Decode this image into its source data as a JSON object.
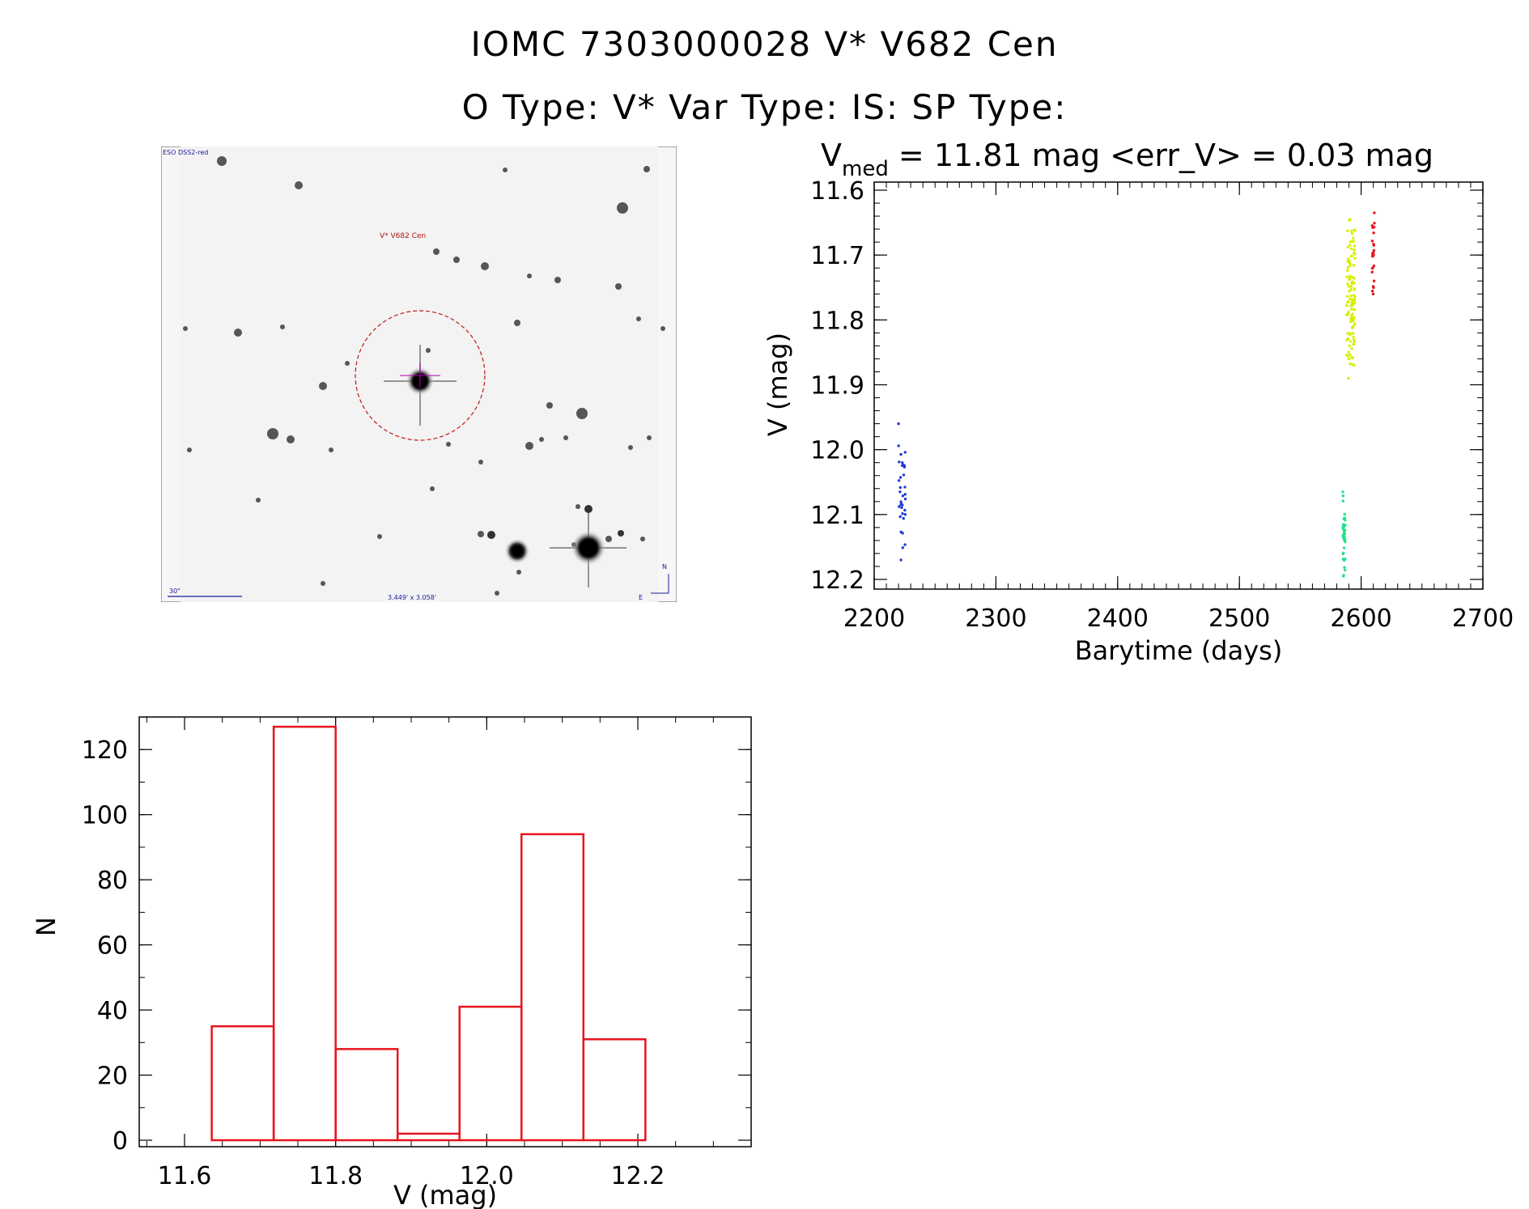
{
  "header": {
    "line1": "IOMC 7303000028   V* V682 Cen",
    "line2": "O Type: V*  Var Type: IS:  SP Type:"
  },
  "finder": {
    "survey_label": "ESO DSS2-red",
    "target_label": "V* V682 Cen",
    "scale_label": "30\"",
    "fov_label": "3.449' x 3.058'",
    "north_label": "N",
    "east_label": "E"
  },
  "lightcurve": {
    "stat_v": "V",
    "stat_sub": "med",
    "stat_rest": " = 11.81 mag <err_V> = 0.03 mag",
    "xlabel": "Barytime (days)",
    "ylabel": "V (mag)",
    "xlim": [
      2200,
      2700
    ],
    "ylim": [
      12.2,
      11.6
    ],
    "xticks": [
      "2200",
      "2300",
      "2400",
      "2500",
      "2600",
      "2700"
    ],
    "yticks": [
      "11.6",
      "11.7",
      "11.8",
      "11.9",
      "12.0",
      "12.1",
      "12.2"
    ],
    "colors": {
      "blue": "#1f3bd6",
      "green": "#22e08a",
      "yellow": "#d6f000",
      "red": "#e8141e"
    }
  },
  "chart_data": [
    {
      "type": "scatter",
      "title": "V_med = 11.81 mag <err_V> = 0.03 mag",
      "xlabel": "Barytime (days)",
      "ylabel": "V (mag)",
      "xlim": [
        2200,
        2700
      ],
      "ylim": [
        12.2,
        11.6
      ],
      "series": [
        {
          "name": "blue",
          "x_range": [
            2220,
            2226
          ],
          "y_range": [
            11.96,
            12.17
          ],
          "n": 35
        },
        {
          "name": "green",
          "x_range": [
            2585,
            2587
          ],
          "y_range": [
            12.065,
            12.195
          ],
          "n": 40
        },
        {
          "name": "yellow",
          "x_range": [
            2588,
            2595
          ],
          "y_range": [
            11.645,
            11.89
          ],
          "n": 120
        },
        {
          "name": "red",
          "x_range": [
            2609,
            2611
          ],
          "y_range": [
            11.635,
            11.76
          ],
          "n": 25
        }
      ]
    },
    {
      "type": "bar",
      "title": "",
      "xlabel": "V (mag)",
      "ylabel": "N",
      "xlim": [
        11.54,
        12.35
      ],
      "ylim": [
        0,
        130
      ],
      "xticks": [
        "11.6",
        "11.8",
        "12.0",
        "12.2"
      ],
      "yticks": [
        "0",
        "20",
        "40",
        "60",
        "80",
        "100",
        "120"
      ],
      "bin_edges": [
        11.636,
        11.718,
        11.8,
        11.882,
        11.964,
        12.046,
        12.128,
        12.21
      ],
      "values": [
        35,
        127,
        28,
        2,
        41,
        94,
        31
      ],
      "color": "#e8141e"
    }
  ]
}
